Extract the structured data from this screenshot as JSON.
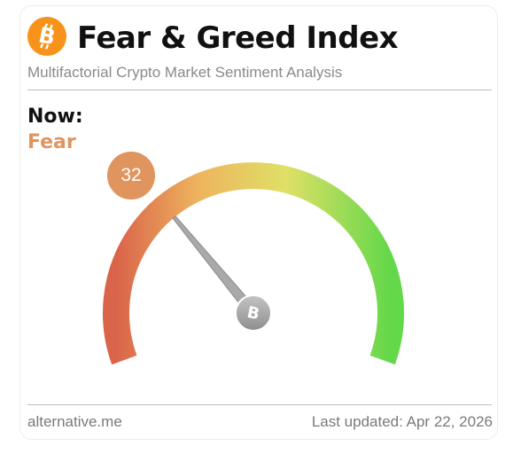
{
  "header": {
    "title": "Fear & Greed Index",
    "subtitle": "Multifactorial Crypto Market Sentiment Analysis",
    "logo_icon": "bitcoin-icon",
    "logo_color": "#f7931a"
  },
  "now": {
    "label": "Now:",
    "classification": "Fear",
    "value": "32",
    "value_fraction": 0.32,
    "accent_color": "#e0955f"
  },
  "gauge": {
    "scale_min": 0,
    "scale_max": 100,
    "gradient_colors": [
      "#d9644a",
      "#eeb45e",
      "#dfe066",
      "#63d84a"
    ],
    "needle_color": "#a9a9a9",
    "hub_icon": "bitcoin-icon"
  },
  "footer": {
    "source": "alternative.me",
    "last_updated": "Last updated: Apr 22, 2026"
  }
}
